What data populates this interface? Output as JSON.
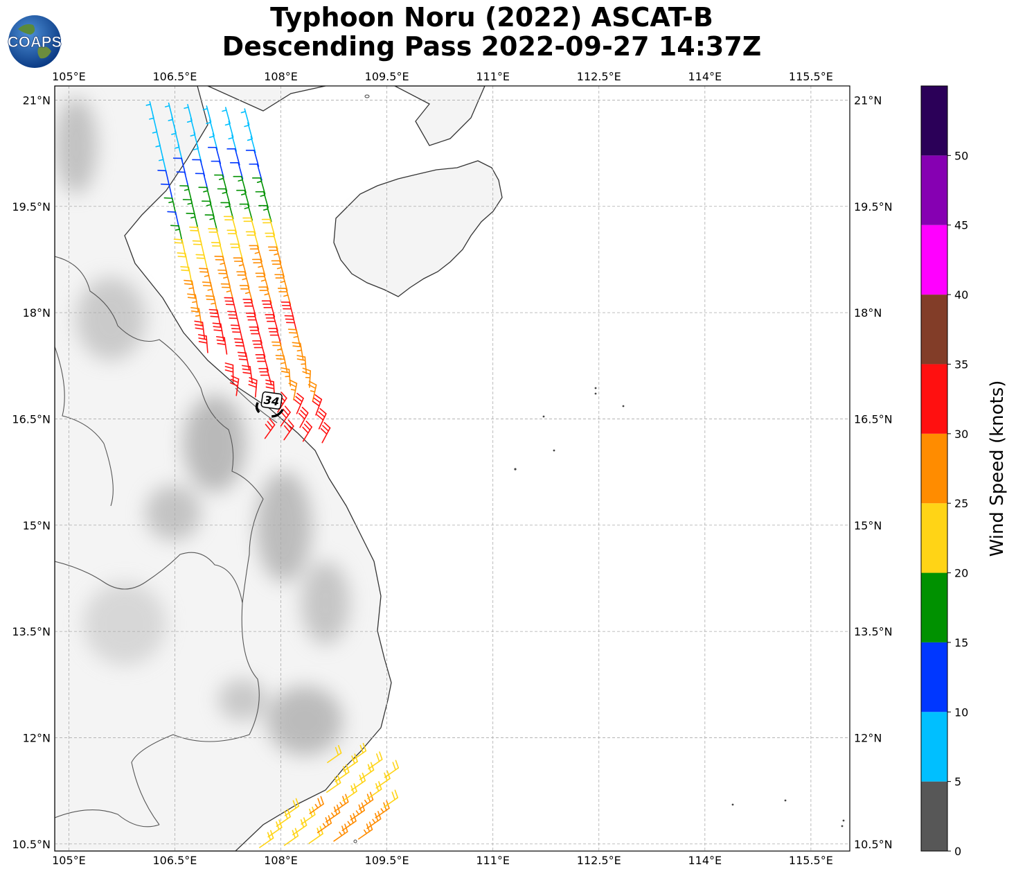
{
  "title": {
    "line1": "Typhoon Noru (2022) ASCAT-B",
    "line2": "Descending Pass 2022-09-27 14:37Z"
  },
  "logo": {
    "text": "COAPS",
    "icon": "globe-icon"
  },
  "map": {
    "lon_range": [
      104.8,
      116.05
    ],
    "lat_range": [
      10.4,
      21.2
    ],
    "lon_ticks": [
      "105°E",
      "106.5°E",
      "108°E",
      "109.5°E",
      "111°E",
      "112.5°E",
      "114°E",
      "115.5°E"
    ],
    "lat_ticks": [
      "21°N",
      "19.5°N",
      "18°N",
      "16.5°N",
      "15°N",
      "13.5°N",
      "12°N",
      "10.5°N"
    ],
    "gridlines": true,
    "storm_marker": {
      "label": "34",
      "lon": 107.85,
      "lat": 16.75,
      "icon": "tropical-storm-icon"
    }
  },
  "colorbar": {
    "label": "Wind Speed (knots)",
    "ticks": [
      "0",
      "5",
      "10",
      "15",
      "20",
      "25",
      "30",
      "35",
      "40",
      "45",
      "50"
    ],
    "bins": [
      {
        "min": 0,
        "max": 5,
        "color": "#575757"
      },
      {
        "min": 5,
        "max": 10,
        "color": "#00bfff"
      },
      {
        "min": 10,
        "max": 15,
        "color": "#0037ff"
      },
      {
        "min": 15,
        "max": 20,
        "color": "#009100"
      },
      {
        "min": 20,
        "max": 25,
        "color": "#ffd416"
      },
      {
        "min": 25,
        "max": 30,
        "color": "#ff8c00"
      },
      {
        "min": 30,
        "max": 35,
        "color": "#ff1010"
      },
      {
        "min": 35,
        "max": 40,
        "color": "#823d28"
      },
      {
        "min": 40,
        "max": 45,
        "color": "#ff00ff"
      },
      {
        "min": 45,
        "max": 50,
        "color": "#8600b2"
      },
      {
        "min": 50,
        "max": 55,
        "color": "#2b0058"
      }
    ]
  }
}
